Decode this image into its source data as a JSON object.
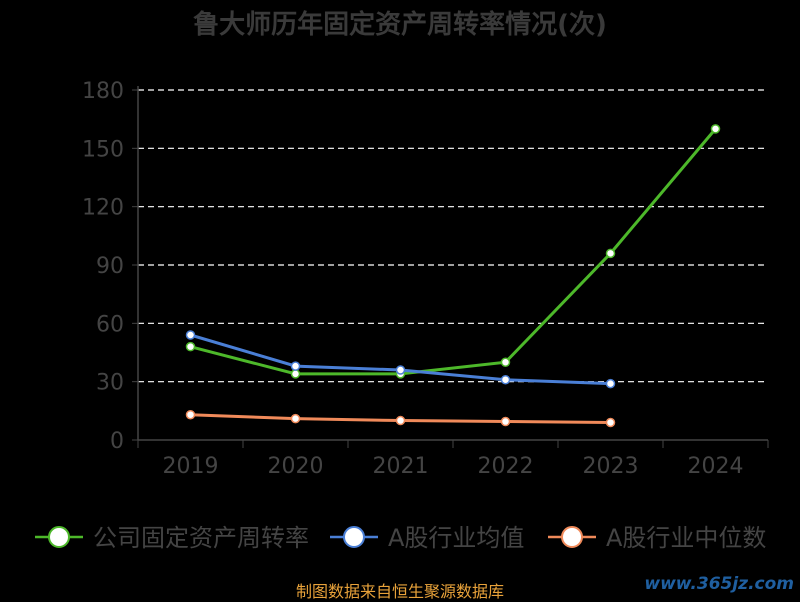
{
  "chart_data": {
    "type": "line",
    "title": "鲁大师历年固定资产周转率情况(次)",
    "ylabel": "",
    "ylim": [
      0,
      180
    ],
    "yticks": [
      "0",
      "30",
      "60",
      "90",
      "120",
      "150",
      "180"
    ],
    "categories": [
      "2019",
      "2020",
      "2021",
      "2022",
      "2023",
      "2024"
    ],
    "grid": true,
    "legend_position": "bottom",
    "series": [
      {
        "name": "公司固定资产周转率",
        "color": "#4db82a",
        "values": [
          48,
          34,
          34,
          40,
          96,
          160
        ]
      },
      {
        "name": "A股行业均值",
        "color": "#4a7fd6",
        "values": [
          54,
          38,
          36,
          31,
          29,
          null
        ]
      },
      {
        "name": "A股行业中位数",
        "color": "#f08a5a",
        "values": [
          13,
          11,
          10,
          9.5,
          9,
          null
        ]
      }
    ]
  },
  "footer": {
    "source": "制图数据来自恒生聚源数据库",
    "watermark": "www.365jz.com"
  }
}
